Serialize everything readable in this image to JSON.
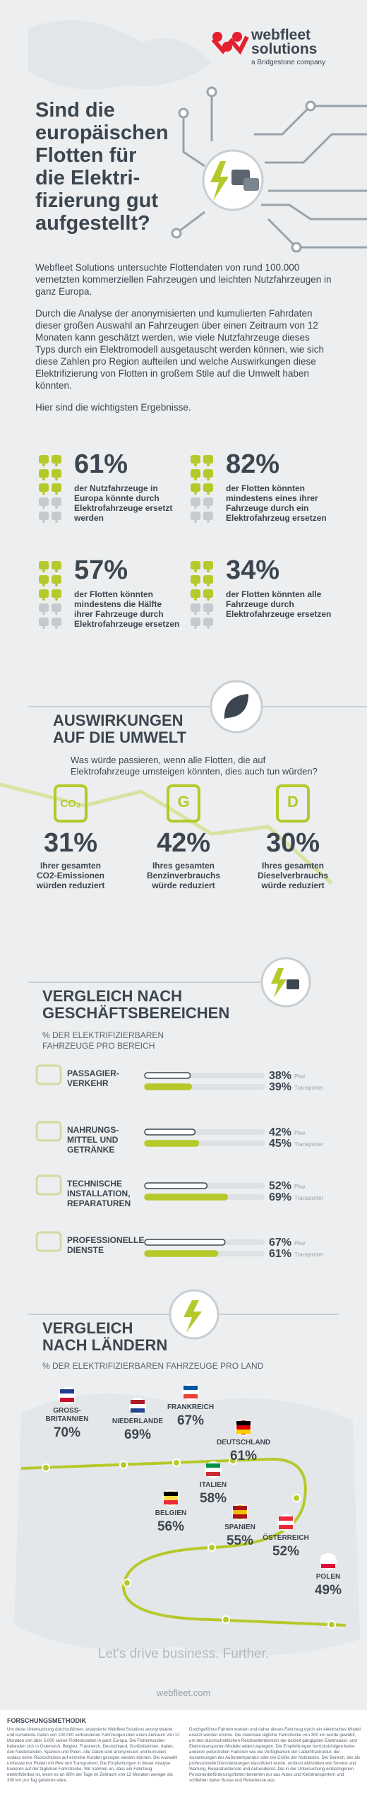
{
  "header": {
    "brand": "webfleet",
    "brand_sub": "solutions",
    "tagline": "a Bridgestone company"
  },
  "title": "Sind die\neuropäischen\nFlotten für\ndie Elektri-\nfizierung gut\naufgestellt?",
  "intro": [
    "Webfleet Solutions untersuchte Flottendaten von rund 100.000 vernetzten kommerziellen Fahrzeugen und leichten Nutzfahrzeugen in ganz Europa.",
    "Durch die Analyse der anonymisierten und kumulierten Fahrdaten dieser großen Auswahl an Fahrzeugen über einen Zeitraum von 12 Monaten kann geschätzt werden, wie viele Nutzfahrzeuge dieses Typs durch ein Elektromodell ausgetauscht werden können, wie sich diese Zahlen pro Region aufteilen und welche Auswirkungen diese Elektrifizierung von Flotten in großem Stile auf die Umwelt haben könnten.",
    "Hier sind die wichtigsten Ergebnisse."
  ],
  "key_findings": [
    {
      "value": "61%",
      "text": "der Nutzfahrzeuge in Europa könnte durch Elektrofahrzeuge ersetzt werden"
    },
    {
      "value": "82%",
      "text": "der Flotten könnten mindestens eines ihrer Fahrzeuge durch ein Elektrofahrzeug ersetzen"
    },
    {
      "value": "57%",
      "text": "der Flotten könnten mindestens die Hälfte ihrer Fahrzeuge durch Elektrofahrzeuge ersetzen"
    },
    {
      "value": "34%",
      "text": "der Flotten könnten alle Fahrzeuge durch Elektrofahrzeuge ersetzen"
    }
  ],
  "environment": {
    "title": "AUSWIRKUNGEN\nAUF DIE UMWELT",
    "question": "Was würde passieren, wenn alle Flotten, die auf Elektrofahrzeuge umsteigen könnten, dies auch tun würden?",
    "items": [
      {
        "icon": "CO₂",
        "value": "31%",
        "text": "Ihrer gesamten\nCO2-Emissionen\nwürden reduziert"
      },
      {
        "icon": "G",
        "value": "42%",
        "text": "Ihres gesamten\nBenzinverbrauchs\nwürde reduziert"
      },
      {
        "icon": "D",
        "value": "30%",
        "text": "Ihres gesamten\nDieselverbrauchs\nwürde reduziert"
      }
    ]
  },
  "sectors": {
    "title": "VERGLEICH NACH\nGESCHÄFTSBEREICHEN",
    "subtitle": "% DER ELEKTRIFIZIERBAREN\nFAHRZEUGE PRO BEREICH",
    "items": [
      {
        "name": "PASSAGIER-\nVERKEHR",
        "bars": [
          {
            "type": "Pkw",
            "value": 38,
            "label": "38%"
          },
          {
            "type": "Transporter",
            "value": 39,
            "label": "39%"
          }
        ]
      },
      {
        "name": "NAHRUNGS-\nMITTEL UND\nGETRÄNKE",
        "bars": [
          {
            "type": "Pkw",
            "value": 42,
            "label": "42%"
          },
          {
            "type": "Transporter",
            "value": 45,
            "label": "45%"
          }
        ]
      },
      {
        "name": "TECHNISCHE\nINSTALLATION,\nREPARATUREN",
        "bars": [
          {
            "type": "Pkw",
            "value": 52,
            "label": "52%"
          },
          {
            "type": "Transporter",
            "value": 69,
            "label": "69%"
          }
        ]
      },
      {
        "name": "PROFESSIONELLE\nDIENSTE",
        "bars": [
          {
            "type": "Pkw",
            "value": 67,
            "label": "67%"
          },
          {
            "type": "Transporter",
            "value": 61,
            "label": "61%"
          }
        ]
      }
    ]
  },
  "countries": {
    "title": "VERGLEICH\nNACH LÄNDERN",
    "subtitle": "% DER ELEKTRIFIZIERBAREN FAHRZEUGE PRO LAND",
    "items": [
      {
        "name": "GROSS-\nBRITANNIEN",
        "value": "70%"
      },
      {
        "name": "NIEDERLANDE",
        "value": "69%"
      },
      {
        "name": "FRANKREICH",
        "value": "67%"
      },
      {
        "name": "DEUTSCHLAND",
        "value": "61%"
      },
      {
        "name": "ITALIEN",
        "value": "58%"
      },
      {
        "name": "BELGIEN",
        "value": "56%"
      },
      {
        "name": "SPANIEN",
        "value": "55%"
      },
      {
        "name": "ÖSTERREICH",
        "value": "52%"
      },
      {
        "name": "POLEN",
        "value": "49%"
      }
    ]
  },
  "footer": {
    "slogan": "Let's drive business. Further.",
    "url": "webfleet.com"
  },
  "methodology": {
    "title": "FORSCHUNGSMETHODIK",
    "columns": [
      "Um diese Untersuchung durchzuführen, analysierte Webfleet Solutions anonymisierte und kumulierte Daten von 100.000 verbundenen Fahrzeugen über einen Zeitraum von 12 Monaten von über 5.000 seiner Flottenkunden in ganz Europa. Die Flottenkunden befanden sich in Österreich, Belgien, Frankreich, Deutschland, Großbritannien, Italien, den Niederlanden, Spanien und Polen. Alle Daten sind anonymisiert und kumuliert, sodass keine Rückschlüsse auf einzelne Kunden gezogen werden können. Die Auswahl umfasste nur Flotten mit Pkw und Transportern. Die Empfehlungen in dieser Analyse basieren auf der täglichen Fahrstrecke. Wir nahmen an, dass ein Fahrzeug elektrifizierbar ist, wenn es an 98% der Tage im Zeitraum von 12 Monaten weniger als 300 km pro Tag gefahren wäre.",
      "Durchgeführte Fahrten wurden und daher dieses Fahrzeug durch ein elektrisches Modell ersetzt werden könnte. Die maximale tägliche Fahrstrecke von 300 km wurde gewählt, um den durchschnittlichen Reichweitenbereich der derzeit gängigsten Elektroauto- und Elektrotransporter-Modelle widerzuspiegeln. Die Empfehlungen berücksichtigen keine anderen potenziellen Faktoren wie die Verfügbarkeit der Ladeinfrastruktur, die Auswirkungen der Außentemperatur oder die Größe der Nutzlasten. Der Bereich, der als professionelle Dienstleistungen klassifiziert wurde, umfasst Aktivitäten wie Service und Wartung, Reparaturdienste und Außendienst. Die in der Untersuchung einbezogenen Personenbeförderungsflotten bestehen nur aus Autos und Kleintransportern und schließen daher Busse und Reisebusse aus."
    ]
  }
}
